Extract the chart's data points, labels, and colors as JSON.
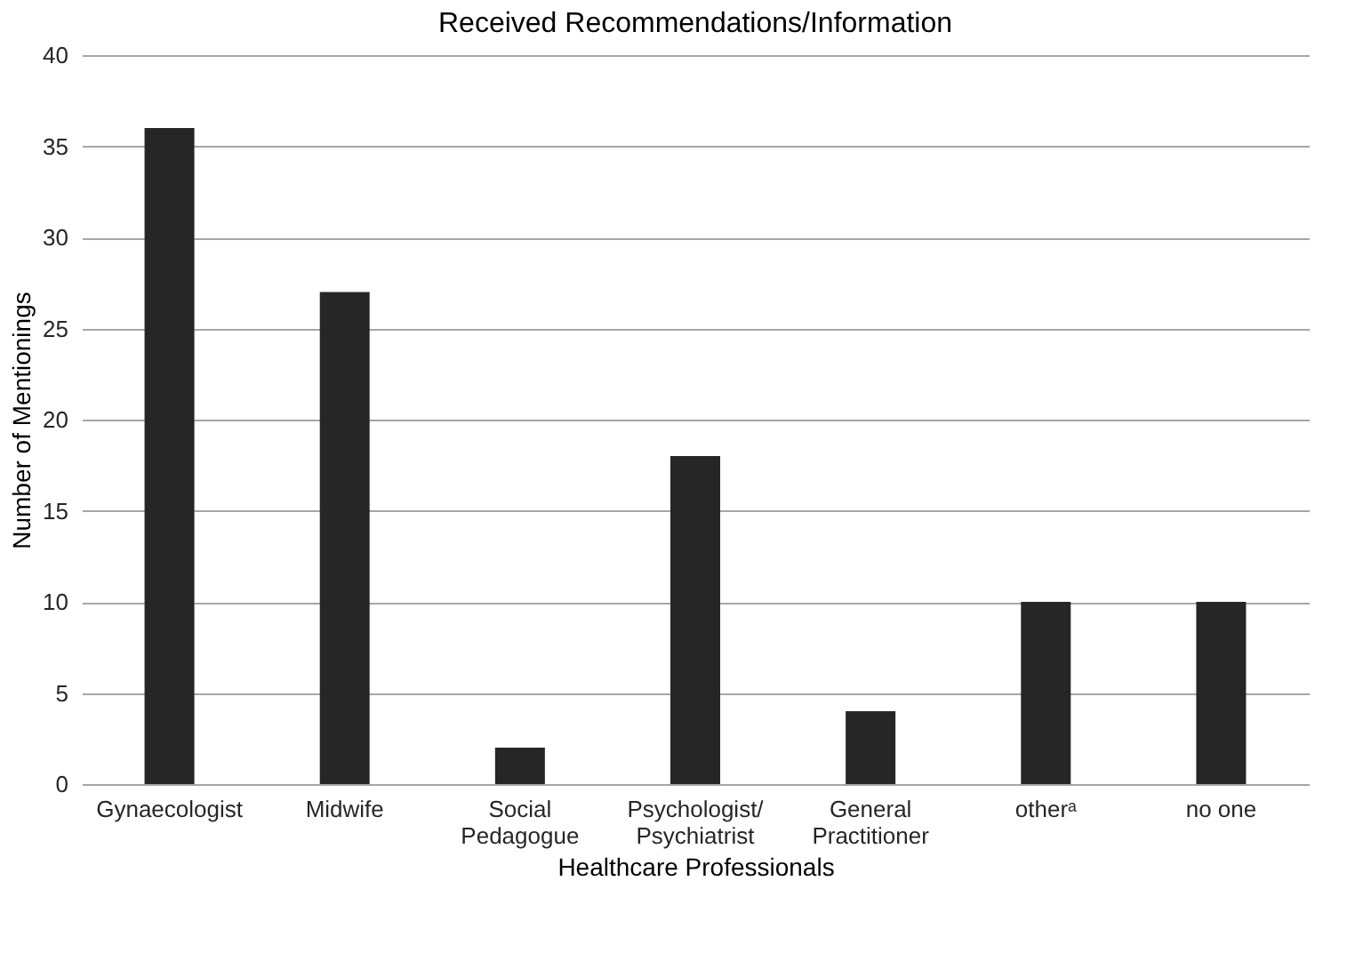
{
  "chart_data": {
    "type": "bar",
    "title": "Received Recommendations/Information",
    "xlabel": "Healthcare Professionals",
    "ylabel": "Number of Mentionings",
    "categories": [
      "Gynaecologist",
      "Midwife",
      "Social\nPedagogue",
      "Psychologist/\nPsychiatrist",
      "General\nPractitioner",
      "otherᵃ",
      "no one"
    ],
    "values": [
      36,
      27,
      2,
      18,
      4,
      10,
      10
    ],
    "color": "#262626",
    "ylim": [
      0,
      40
    ],
    "yticks": [
      0,
      5,
      10,
      15,
      20,
      25,
      30,
      35,
      40
    ],
    "grid": "y"
  }
}
